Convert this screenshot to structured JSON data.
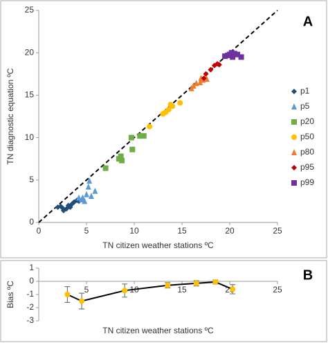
{
  "chart_data": [
    {
      "type": "scatter",
      "xlabel": "TN citizen weather stations ºC",
      "ylabel": "TN diagnostic equation ºC",
      "annotation": "A",
      "xlim": [
        0,
        25
      ],
      "ylim": [
        0,
        25
      ],
      "xticks": [
        0,
        5,
        10,
        15,
        20,
        25
      ],
      "yticks": [
        0,
        5,
        10,
        15,
        20,
        25
      ],
      "legend": "right",
      "reference_line": "dashed",
      "series": [
        {
          "name": "p1",
          "color": "#1f4e79",
          "marker": "diamond",
          "x": [
            2.0,
            2.3,
            2.5,
            2.6,
            2.9,
            3.1,
            3.3,
            3.5,
            3.7,
            4.0,
            4.2
          ],
          "values": [
            1.8,
            1.9,
            1.7,
            1.4,
            1.6,
            2.0,
            1.8,
            2.2,
            2.4,
            2.6,
            2.5
          ]
        },
        {
          "name": "p5",
          "color": "#5b9bd5",
          "marker": "triangle",
          "x": [
            4.2,
            4.5,
            4.6,
            4.8,
            5.0,
            5.2,
            5.3,
            5.5,
            5.9
          ],
          "values": [
            2.9,
            2.7,
            2.9,
            2.5,
            3.3,
            4.2,
            4.9,
            3.1,
            3.7
          ]
        },
        {
          "name": "p20",
          "color": "#70ad47",
          "marker": "square",
          "x": [
            7.0,
            8.4,
            8.6,
            8.7,
            9.7,
            9.8,
            10.6,
            11.0
          ],
          "values": [
            6.4,
            7.5,
            7.8,
            7.3,
            10.0,
            8.6,
            10.2,
            10.2
          ]
        },
        {
          "name": "p50",
          "color": "#ffc000",
          "marker": "circle",
          "x": [
            11.6,
            13.0,
            13.3,
            13.6,
            13.8,
            14.0,
            14.8
          ],
          "values": [
            11.3,
            12.8,
            13.0,
            13.3,
            13.9,
            13.7,
            14.1
          ]
        },
        {
          "name": "p80",
          "color": "#ed7d31",
          "marker": "triangle",
          "x": [
            16.0,
            16.2,
            16.5,
            16.9,
            17.0,
            17.2,
            17.6
          ],
          "values": [
            15.8,
            16.1,
            16.4,
            16.5,
            17.0,
            16.8,
            16.9
          ]
        },
        {
          "name": "p95",
          "color": "#c00000",
          "marker": "diamond",
          "x": [
            17.3,
            17.5,
            18.0,
            18.4,
            18.7,
            18.9
          ],
          "values": [
            17.0,
            17.5,
            18.0,
            18.5,
            18.7,
            18.6
          ]
        },
        {
          "name": "p99",
          "color": "#7030a0",
          "marker": "square",
          "x": [
            19.5,
            19.8,
            20.0,
            20.2,
            20.3,
            20.5,
            20.8,
            21.2
          ],
          "values": [
            19.6,
            19.7,
            19.8,
            20.0,
            19.5,
            19.9,
            19.8,
            19.5
          ]
        }
      ]
    },
    {
      "type": "errorline",
      "xlabel": "TN citizen weather stations ºC",
      "ylabel": "Bias ºC",
      "annotation": "B",
      "xlim": [
        0,
        25
      ],
      "ylim": [
        -3,
        1
      ],
      "xticks": [
        5,
        10,
        15,
        20,
        25
      ],
      "yticks": [
        -3,
        -2,
        -1,
        0,
        1
      ],
      "series": [
        {
          "color": "#ffc000",
          "line_color": "#000000",
          "x": [
            3.0,
            4.5,
            9.0,
            13.5,
            16.5,
            18.5,
            20.3
          ],
          "values": [
            -1.0,
            -1.5,
            -0.7,
            -0.3,
            -0.15,
            -0.05,
            -0.6
          ],
          "errors": [
            0.6,
            0.6,
            0.5,
            0.2,
            0.2,
            0.15,
            0.35
          ]
        }
      ]
    }
  ]
}
